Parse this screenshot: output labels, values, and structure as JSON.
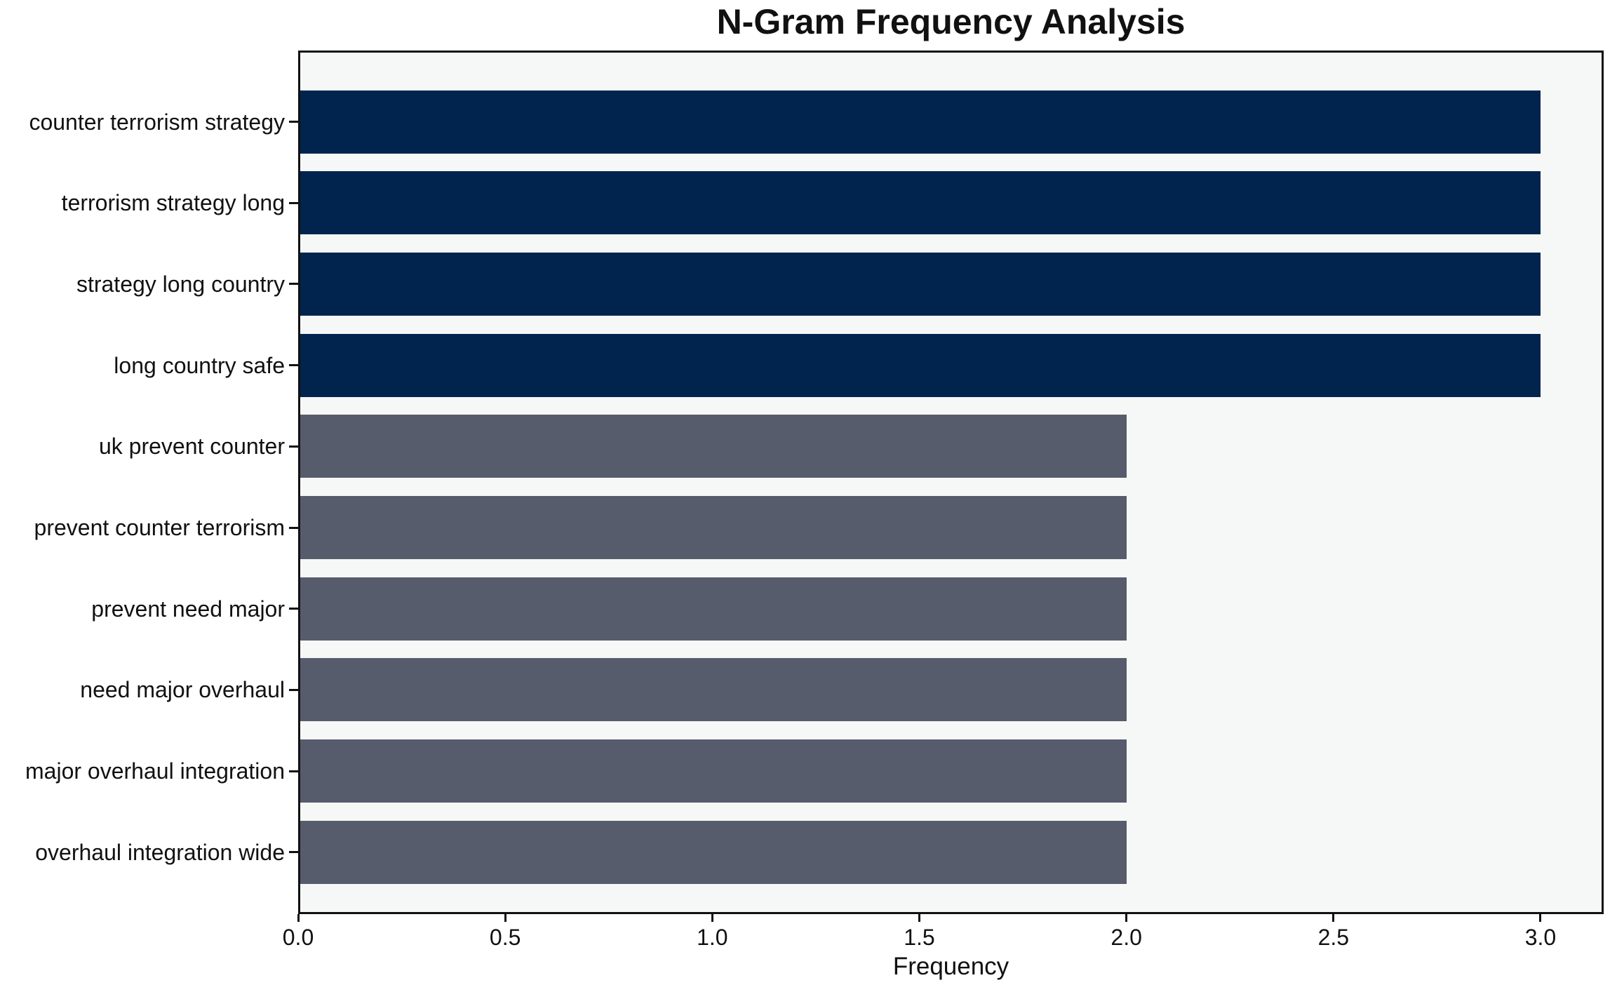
{
  "chart_data": {
    "type": "bar",
    "orientation": "horizontal",
    "title": "N-Gram Frequency Analysis",
    "xlabel": "Frequency",
    "ylabel": "",
    "categories": [
      "counter terrorism strategy",
      "terrorism strategy long",
      "strategy long country",
      "long country safe",
      "uk prevent counter",
      "prevent counter terrorism",
      "prevent need major",
      "need major overhaul",
      "major overhaul integration",
      "overhaul integration wide"
    ],
    "values": [
      3,
      3,
      3,
      3,
      2,
      2,
      2,
      2,
      2,
      2
    ],
    "bar_colors": [
      "#00244D",
      "#00244D",
      "#00244D",
      "#00244D",
      "#565C6C",
      "#565C6C",
      "#565C6C",
      "#565C6C",
      "#565C6C",
      "#565C6C"
    ],
    "xlim": [
      0,
      3.15
    ],
    "xticks": [
      0.0,
      0.5,
      1.0,
      1.5,
      2.0,
      2.5,
      3.0
    ],
    "xtick_labels": [
      "0.0",
      "0.5",
      "1.0",
      "1.5",
      "2.0",
      "2.5",
      "3.0"
    ],
    "grid": false,
    "legend": "none"
  },
  "colors": {
    "high_frequency_bar": "#00244D",
    "low_frequency_bar": "#565C6C",
    "plot_background": "#F6F7F7",
    "figure_background": "#FFFFFF",
    "spine": "#111111",
    "text": "#111111"
  }
}
